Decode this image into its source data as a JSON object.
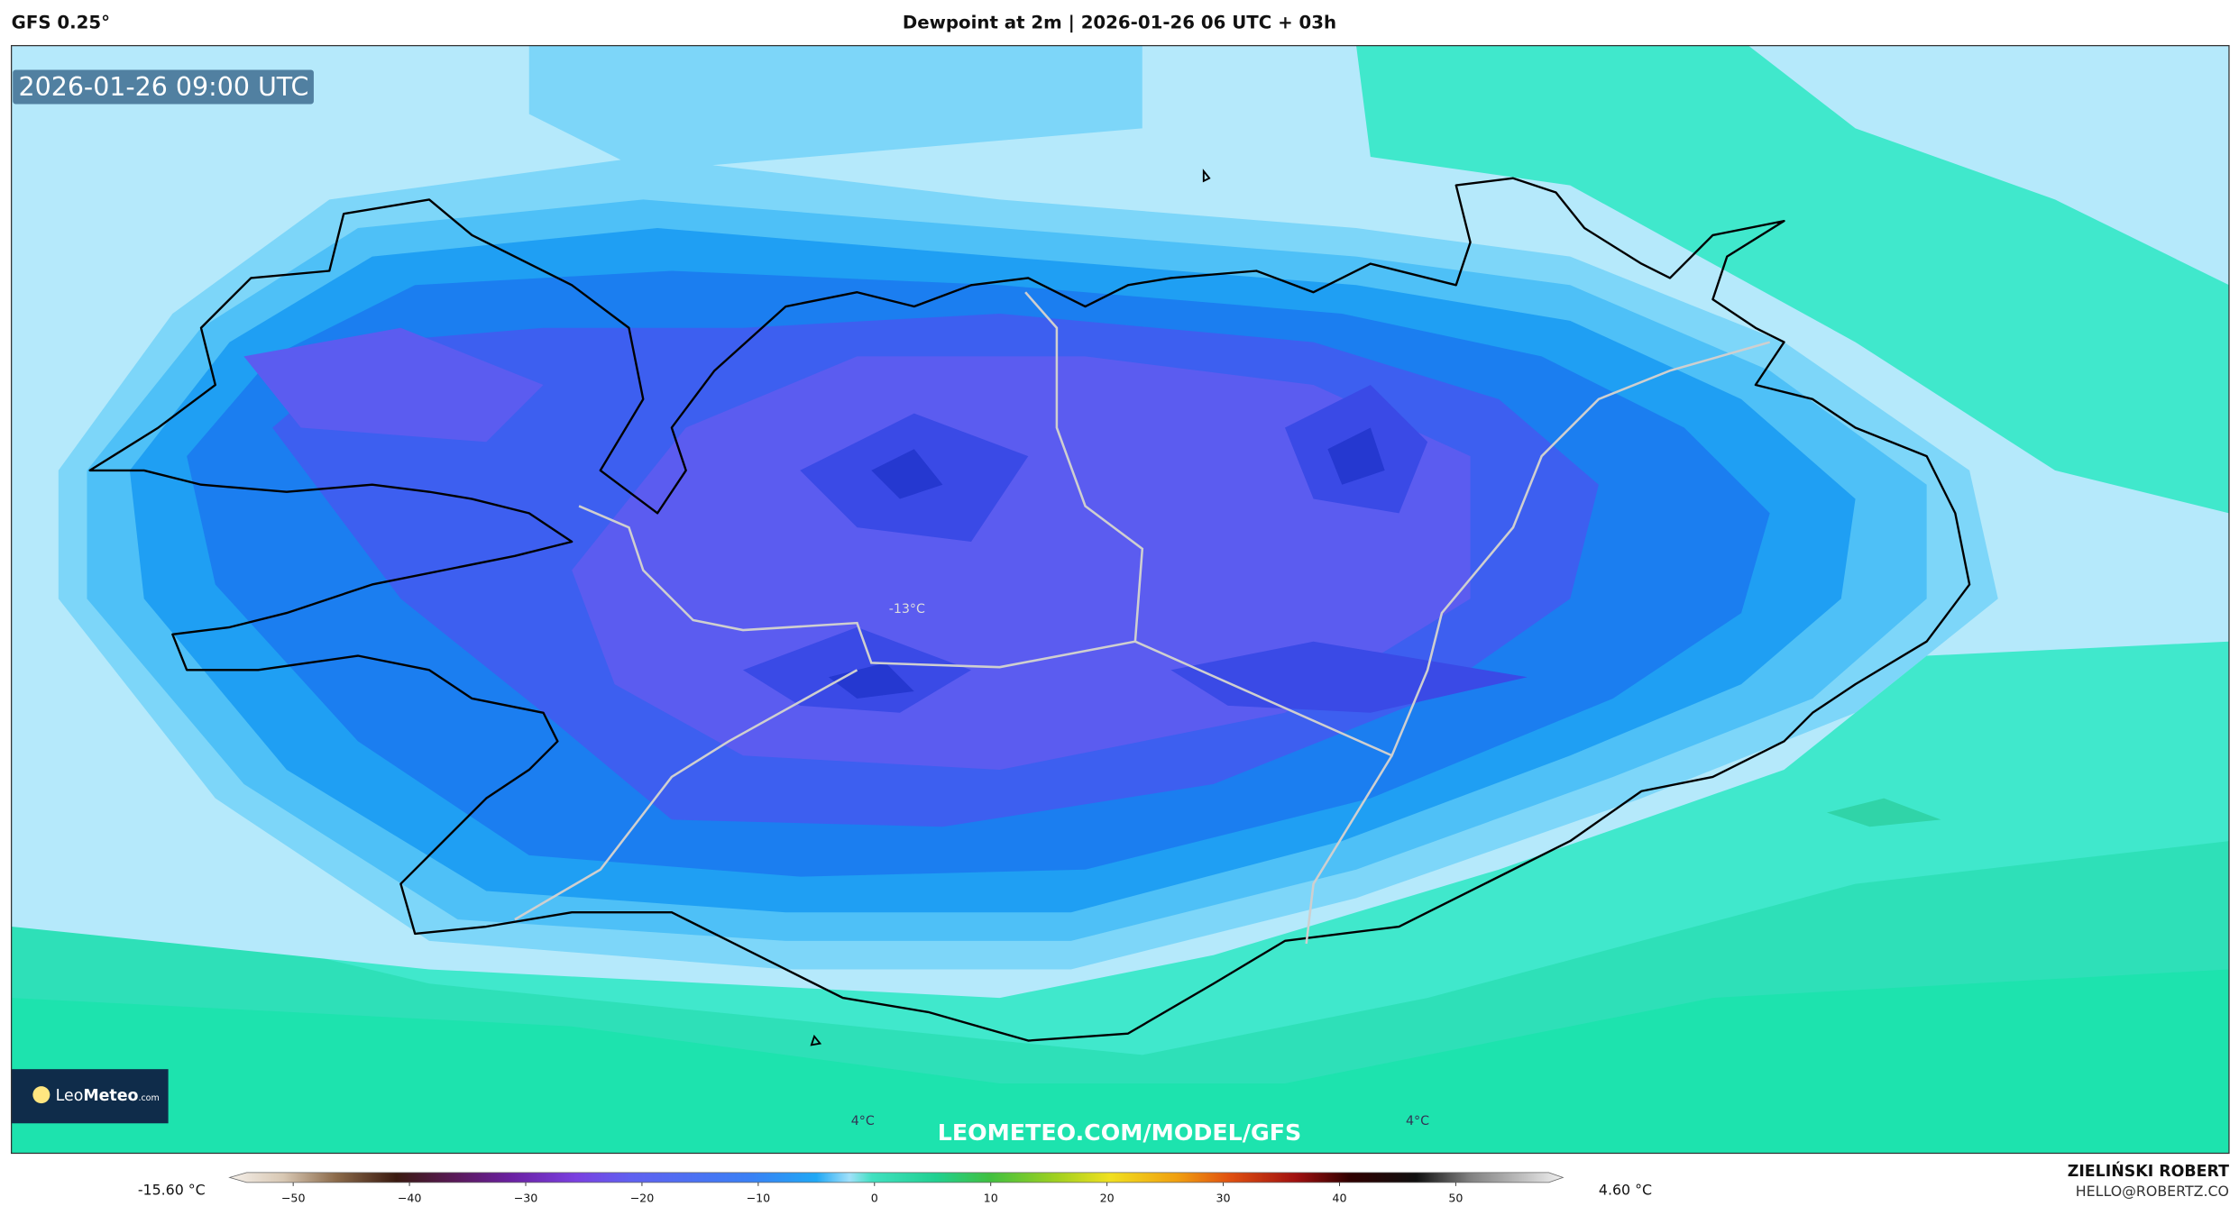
{
  "header": {
    "model": "GFS 0.25°",
    "title": "Dewpoint at 2m | 2026-01-26 06 UTC + 03h"
  },
  "map": {
    "timestamp": "2026-01-26 09:00 UTC",
    "labels": [
      "-13°C",
      "4°C",
      "4°C"
    ],
    "watermark": "LEOMETEO.COM/MODEL/GFS",
    "logo": {
      "light": "Leo",
      "bold": "Meteo",
      "suffix": ".com"
    }
  },
  "colorbar": {
    "min_label": "-15.60 °C",
    "max_label": "4.60 °C",
    "range": [
      -54,
      58
    ],
    "ticks": [
      {
        "value": -50,
        "label": "−50"
      },
      {
        "value": -40,
        "label": "−40"
      },
      {
        "value": -30,
        "label": "−30"
      },
      {
        "value": -20,
        "label": "−20"
      },
      {
        "value": -10,
        "label": "−10"
      },
      0,
      10,
      20,
      30,
      40,
      50
    ]
  },
  "credits": {
    "author": "ZIELIŃSKI ROBERT",
    "email": "HELLO@ROBERTZ.CO"
  }
}
